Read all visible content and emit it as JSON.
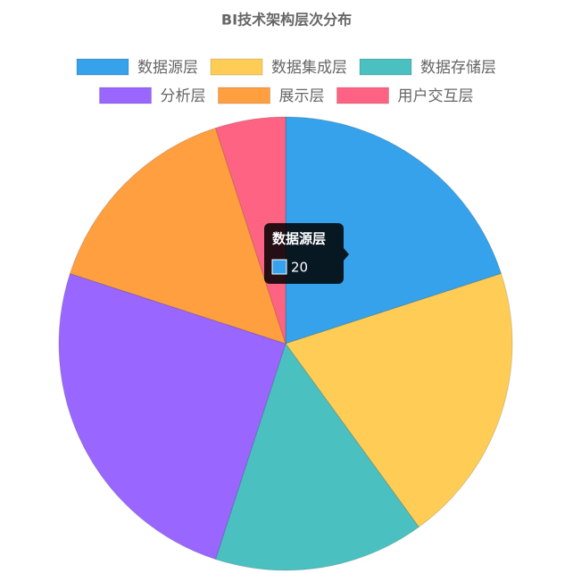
{
  "chart_data": {
    "type": "pie",
    "title": "BI技术架构层次分布",
    "categories": [
      "数据源层",
      "数据集成层",
      "数据存储层",
      "分析层",
      "展示层",
      "用户交互层"
    ],
    "values": [
      20,
      20,
      15,
      25,
      15,
      5
    ],
    "colors": [
      "#36a2eb",
      "#ffcd56",
      "#4bc0c0",
      "#9966ff",
      "#ff9f40",
      "#ff6384"
    ],
    "legend": "top"
  }
}
